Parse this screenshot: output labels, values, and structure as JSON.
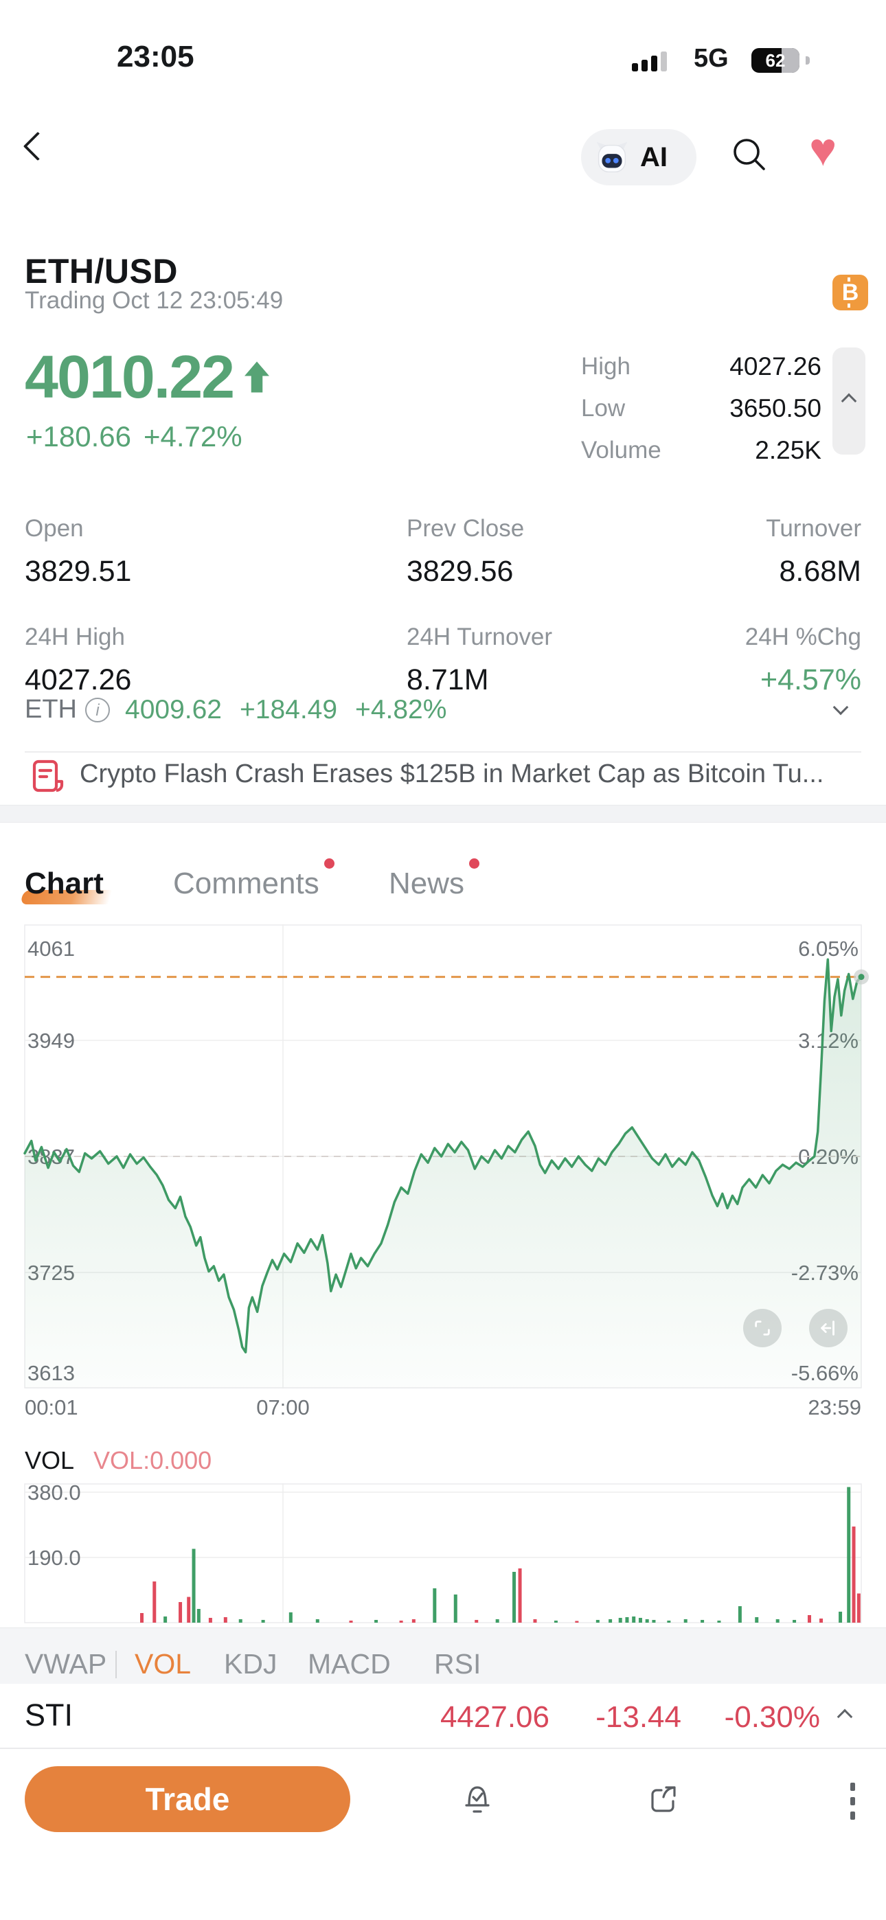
{
  "status_bar": {
    "time": "23:05",
    "network": "5G",
    "battery": "62"
  },
  "nav": {
    "ai_label": "AI"
  },
  "header": {
    "symbol": "ETH/USD",
    "status_line": "Trading Oct 12 23:05:49",
    "price": "4010.22",
    "change": "+180.66",
    "change_pct": "+4.72%",
    "side_stats": [
      {
        "label": "High",
        "value": "4027.26"
      },
      {
        "label": "Low",
        "value": "3650.50"
      },
      {
        "label": "Volume",
        "value": "2.25K"
      }
    ]
  },
  "stats": [
    {
      "label": "Open",
      "value": "3829.51"
    },
    {
      "label": "Prev Close",
      "value": "3829.56"
    },
    {
      "label": "Turnover",
      "value": "8.68M"
    },
    {
      "label": "24H High",
      "value": "4027.26"
    },
    {
      "label": "24H Turnover",
      "value": "8.71M"
    },
    {
      "label": "24H %Chg",
      "value": "+4.57%"
    }
  ],
  "underlying": {
    "symbol": "ETH",
    "price": "4009.62",
    "change": "+184.49",
    "change_pct": "+4.82%"
  },
  "news": {
    "headline": "Crypto Flash Crash Erases $125B in Market Cap as Bitcoin Tu..."
  },
  "tabs": [
    {
      "label": "Chart"
    },
    {
      "label": "Comments"
    },
    {
      "label": "News"
    }
  ],
  "chart_data": {
    "type": "line",
    "title": "ETH/USD intraday price",
    "x_ticks": [
      "00:01",
      "07:00",
      "23:59"
    ],
    "y_ticks_left": [
      4061,
      3949,
      3837,
      3725,
      3613
    ],
    "y_ticks_right": [
      "6.05%",
      "3.12%",
      "0.20%",
      "-2.73%",
      "-5.66%"
    ],
    "ylim": [
      3613,
      4061
    ],
    "current_price": 4010.22,
    "prev_close": 3829.56,
    "prev_close_gridline": 3837,
    "series": [
      {
        "name": "ETH/USD",
        "points": [
          [
            0.0,
            3840
          ],
          [
            0.008,
            3852
          ],
          [
            0.013,
            3833
          ],
          [
            0.02,
            3846
          ],
          [
            0.028,
            3826
          ],
          [
            0.035,
            3841
          ],
          [
            0.042,
            3832
          ],
          [
            0.05,
            3844
          ],
          [
            0.058,
            3828
          ],
          [
            0.065,
            3822
          ],
          [
            0.072,
            3840
          ],
          [
            0.08,
            3835
          ],
          [
            0.09,
            3842
          ],
          [
            0.1,
            3830
          ],
          [
            0.11,
            3837
          ],
          [
            0.118,
            3826
          ],
          [
            0.126,
            3839
          ],
          [
            0.134,
            3830
          ],
          [
            0.142,
            3836
          ],
          [
            0.15,
            3827
          ],
          [
            0.158,
            3819
          ],
          [
            0.165,
            3809
          ],
          [
            0.172,
            3795
          ],
          [
            0.18,
            3787
          ],
          [
            0.186,
            3798
          ],
          [
            0.192,
            3779
          ],
          [
            0.198,
            3769
          ],
          [
            0.205,
            3751
          ],
          [
            0.21,
            3759
          ],
          [
            0.215,
            3739
          ],
          [
            0.22,
            3726
          ],
          [
            0.226,
            3731
          ],
          [
            0.232,
            3717
          ],
          [
            0.238,
            3723
          ],
          [
            0.244,
            3701
          ],
          [
            0.25,
            3689
          ],
          [
            0.256,
            3669
          ],
          [
            0.26,
            3653
          ],
          [
            0.264,
            3648
          ],
          [
            0.268,
            3691
          ],
          [
            0.272,
            3701
          ],
          [
            0.278,
            3687
          ],
          [
            0.284,
            3712
          ],
          [
            0.29,
            3725
          ],
          [
            0.296,
            3737
          ],
          [
            0.302,
            3728
          ],
          [
            0.31,
            3743
          ],
          [
            0.318,
            3735
          ],
          [
            0.326,
            3753
          ],
          [
            0.334,
            3744
          ],
          [
            0.342,
            3757
          ],
          [
            0.35,
            3747
          ],
          [
            0.356,
            3761
          ],
          [
            0.362,
            3734
          ],
          [
            0.366,
            3707
          ],
          [
            0.372,
            3723
          ],
          [
            0.378,
            3711
          ],
          [
            0.384,
            3727
          ],
          [
            0.39,
            3743
          ],
          [
            0.396,
            3729
          ],
          [
            0.402,
            3739
          ],
          [
            0.41,
            3731
          ],
          [
            0.418,
            3743
          ],
          [
            0.426,
            3753
          ],
          [
            0.434,
            3771
          ],
          [
            0.442,
            3793
          ],
          [
            0.45,
            3807
          ],
          [
            0.458,
            3801
          ],
          [
            0.466,
            3823
          ],
          [
            0.474,
            3839
          ],
          [
            0.482,
            3831
          ],
          [
            0.49,
            3845
          ],
          [
            0.498,
            3837
          ],
          [
            0.506,
            3849
          ],
          [
            0.514,
            3841
          ],
          [
            0.522,
            3851
          ],
          [
            0.53,
            3843
          ],
          [
            0.538,
            3825
          ],
          [
            0.546,
            3837
          ],
          [
            0.554,
            3831
          ],
          [
            0.562,
            3843
          ],
          [
            0.57,
            3835
          ],
          [
            0.578,
            3847
          ],
          [
            0.586,
            3841
          ],
          [
            0.594,
            3853
          ],
          [
            0.602,
            3861
          ],
          [
            0.61,
            3847
          ],
          [
            0.616,
            3829
          ],
          [
            0.622,
            3821
          ],
          [
            0.63,
            3833
          ],
          [
            0.638,
            3825
          ],
          [
            0.646,
            3835
          ],
          [
            0.654,
            3827
          ],
          [
            0.662,
            3837
          ],
          [
            0.67,
            3829
          ],
          [
            0.678,
            3823
          ],
          [
            0.686,
            3835
          ],
          [
            0.694,
            3829
          ],
          [
            0.702,
            3841
          ],
          [
            0.71,
            3849
          ],
          [
            0.718,
            3859
          ],
          [
            0.726,
            3865
          ],
          [
            0.734,
            3855
          ],
          [
            0.742,
            3845
          ],
          [
            0.75,
            3835
          ],
          [
            0.758,
            3829
          ],
          [
            0.766,
            3839
          ],
          [
            0.774,
            3827
          ],
          [
            0.782,
            3835
          ],
          [
            0.79,
            3829
          ],
          [
            0.798,
            3841
          ],
          [
            0.806,
            3833
          ],
          [
            0.814,
            3817
          ],
          [
            0.822,
            3799
          ],
          [
            0.828,
            3789
          ],
          [
            0.834,
            3801
          ],
          [
            0.84,
            3787
          ],
          [
            0.846,
            3799
          ],
          [
            0.852,
            3791
          ],
          [
            0.858,
            3807
          ],
          [
            0.866,
            3815
          ],
          [
            0.874,
            3807
          ],
          [
            0.882,
            3819
          ],
          [
            0.89,
            3811
          ],
          [
            0.898,
            3823
          ],
          [
            0.906,
            3829
          ],
          [
            0.914,
            3825
          ],
          [
            0.922,
            3831
          ],
          [
            0.93,
            3827
          ],
          [
            0.938,
            3833
          ],
          [
            0.944,
            3837
          ],
          [
            0.948,
            3861
          ],
          [
            0.952,
            3921
          ],
          [
            0.956,
            3987
          ],
          [
            0.96,
            4027
          ],
          [
            0.964,
            3958
          ],
          [
            0.968,
            3991
          ],
          [
            0.972,
            4008
          ],
          [
            0.976,
            3973
          ],
          [
            0.98,
            3997
          ],
          [
            0.985,
            4013
          ],
          [
            0.99,
            3989
          ],
          [
            0.995,
            4006
          ],
          [
            1.0,
            4010.22
          ]
        ]
      }
    ],
    "volume": {
      "label": "VOL",
      "value_label": "VOL:0.000",
      "y_ticks": [
        380.0,
        190.0
      ],
      "ylim": [
        0,
        406
      ],
      "bars": [
        [
          0.14,
          28,
          "r"
        ],
        [
          0.155,
          120,
          "r"
        ],
        [
          0.168,
          18,
          "g"
        ],
        [
          0.186,
          60,
          "r"
        ],
        [
          0.196,
          75,
          "r"
        ],
        [
          0.202,
          215,
          "g"
        ],
        [
          0.208,
          40,
          "g"
        ],
        [
          0.222,
          14,
          "r"
        ],
        [
          0.24,
          16,
          "r"
        ],
        [
          0.258,
          10,
          "g"
        ],
        [
          0.285,
          8,
          "g"
        ],
        [
          0.318,
          30,
          "g"
        ],
        [
          0.35,
          10,
          "g"
        ],
        [
          0.39,
          6,
          "r"
        ],
        [
          0.42,
          8,
          "g"
        ],
        [
          0.45,
          6,
          "r"
        ],
        [
          0.465,
          10,
          "r"
        ],
        [
          0.49,
          100,
          "g"
        ],
        [
          0.515,
          82,
          "g"
        ],
        [
          0.54,
          8,
          "r"
        ],
        [
          0.565,
          10,
          "g"
        ],
        [
          0.585,
          148,
          "g"
        ],
        [
          0.592,
          158,
          "r"
        ],
        [
          0.61,
          10,
          "r"
        ],
        [
          0.635,
          6,
          "g"
        ],
        [
          0.66,
          5,
          "r"
        ],
        [
          0.685,
          8,
          "g"
        ],
        [
          0.7,
          10,
          "g"
        ],
        [
          0.712,
          14,
          "g"
        ],
        [
          0.72,
          16,
          "g"
        ],
        [
          0.728,
          18,
          "g"
        ],
        [
          0.736,
          14,
          "g"
        ],
        [
          0.744,
          10,
          "g"
        ],
        [
          0.752,
          8,
          "g"
        ],
        [
          0.77,
          6,
          "g"
        ],
        [
          0.79,
          10,
          "g"
        ],
        [
          0.81,
          8,
          "g"
        ],
        [
          0.83,
          6,
          "g"
        ],
        [
          0.855,
          48,
          "g"
        ],
        [
          0.875,
          16,
          "g"
        ],
        [
          0.9,
          10,
          "g"
        ],
        [
          0.92,
          8,
          "g"
        ],
        [
          0.938,
          22,
          "r"
        ],
        [
          0.952,
          12,
          "r"
        ],
        [
          0.975,
          32,
          "g"
        ],
        [
          0.985,
          395,
          "g"
        ],
        [
          0.991,
          280,
          "r"
        ],
        [
          0.997,
          85,
          "r"
        ]
      ]
    }
  },
  "indicators": {
    "items": [
      "VWAP",
      "VOL",
      "KDJ",
      "MACD",
      "RSI"
    ],
    "active": "VOL"
  },
  "index_row": {
    "symbol": "STI",
    "price": "4427.06",
    "change": "-13.44",
    "change_pct": "-0.30%"
  },
  "footer": {
    "trade": "Trade"
  },
  "colors": {
    "green": "#57a375",
    "line_green": "#3e9a64",
    "red": "#e0485a",
    "sti_red": "#d8475a",
    "orange": "#e8823c",
    "trade_orange": "#e5823d",
    "badge_orange": "#f09a3d",
    "dashed_orange": "#e29649",
    "heart_pink": "#ef6e80",
    "vol_label_pink": "#e8868d"
  }
}
